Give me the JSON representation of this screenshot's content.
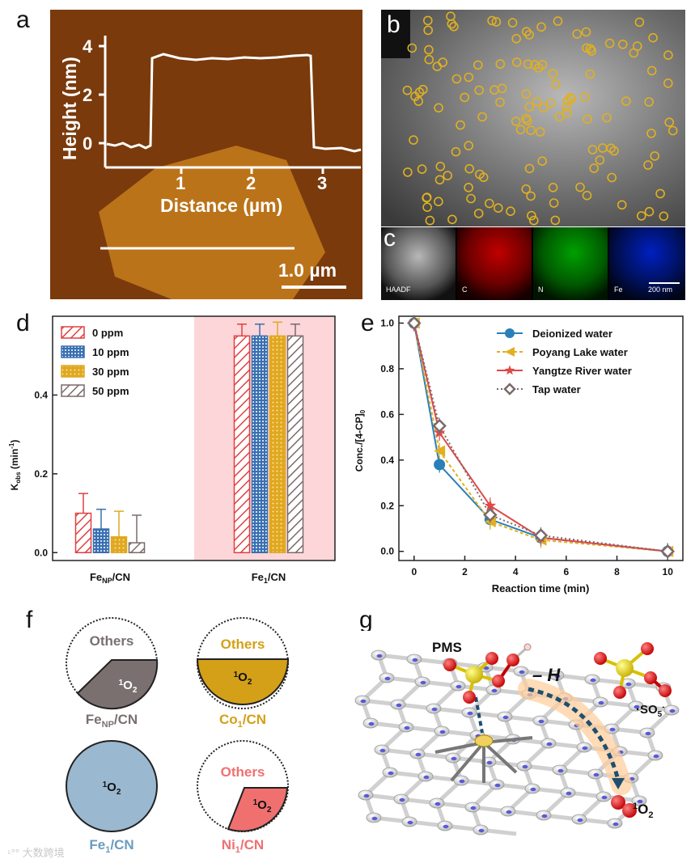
{
  "panels": {
    "a": {
      "label": "a",
      "y_axis_label": "Height (nm)",
      "x_axis_label": "Distance (µm)",
      "y_ticks": [
        "0",
        "2",
        "4"
      ],
      "x_ticks": [
        "1",
        "2",
        "3"
      ],
      "scale_bar": "1.0 µm",
      "colors": {
        "bg": "#7a3a0c",
        "flake": "#c27a1c",
        "line": "#ffffff"
      }
    },
    "b": {
      "label": "b",
      "circle_color": "#e0b020"
    },
    "c": {
      "label": "c",
      "maps": [
        "HAADF",
        "C",
        "N",
        "Fe"
      ],
      "scale_bar": "200 nm",
      "colors": {
        "HAADF": "#9a9a9a",
        "C": "#c00000",
        "N": "#00a000",
        "Fe": "#0020c0"
      }
    },
    "f": {
      "label": "f",
      "pies": [
        {
          "others": "Others",
          "singlet": "1O2",
          "catalyst": "FeNP/CN",
          "color": "#7a7070"
        },
        {
          "others": "Others",
          "singlet": "1O2",
          "catalyst": "Co1/CN",
          "color": "#d4a018"
        },
        {
          "singlet": "1O2",
          "catalyst": "Fe1/CN",
          "color": "#9ab8d0"
        },
        {
          "others": "Others",
          "singlet": "1O2",
          "catalyst": "Ni1/CN",
          "color": "#f07070"
        }
      ]
    },
    "g": {
      "label": "g",
      "pms": "PMS",
      "minus_h": "– H",
      "so5": "·SO5-",
      "singlet": "1O2"
    }
  },
  "chart_data": [
    {
      "panel": "d",
      "type": "bar",
      "title": "",
      "xlabel": "",
      "ylabel": "Kobs (min-1)",
      "categories": [
        "FeNP/CN",
        "Fe1/CN"
      ],
      "ylim": [
        -0.02,
        0.6
      ],
      "yticks": [
        0.0,
        0.2,
        0.4
      ],
      "legend_position": "top-left",
      "series": [
        {
          "name": "0 ppm",
          "values": [
            0.1,
            0.55
          ],
          "errors": [
            0.05,
            0.03
          ],
          "color": "#e04040"
        },
        {
          "name": "10 ppm",
          "values": [
            0.06,
            0.55
          ],
          "errors": [
            0.05,
            0.03
          ],
          "color": "#3a6fb0"
        },
        {
          "name": "30 ppm",
          "values": [
            0.04,
            0.55
          ],
          "errors": [
            0.065,
            0.035
          ],
          "color": "#e0a820"
        },
        {
          "name": "50 ppm",
          "values": [
            0.025,
            0.55
          ],
          "errors": [
            0.07,
            0.03
          ],
          "color": "#7a6a6a"
        }
      ]
    },
    {
      "panel": "e",
      "type": "line",
      "title": "",
      "xlabel": "Reaction time (min)",
      "ylabel": "Conc./[4-CP]0",
      "xlim": [
        -0.6,
        10.6
      ],
      "ylim": [
        -0.04,
        1.03
      ],
      "xticks": [
        0,
        2,
        4,
        6,
        8,
        10
      ],
      "yticks": [
        0.0,
        0.2,
        0.4,
        0.6,
        0.8,
        1.0
      ],
      "legend_position": "top-right",
      "x": [
        0,
        1,
        3,
        5,
        10
      ],
      "series": [
        {
          "name": "Deionized water",
          "values": [
            1.0,
            0.38,
            0.14,
            0.06,
            0.0
          ],
          "color": "#2a7fb8",
          "marker": "circle"
        },
        {
          "name": "Poyang Lake water",
          "values": [
            1.0,
            0.44,
            0.13,
            0.05,
            0.0
          ],
          "color": "#e0b020",
          "marker": "triangle-left"
        },
        {
          "name": "Yangtze River water",
          "values": [
            1.0,
            0.52,
            0.2,
            0.06,
            0.0
          ],
          "color": "#e04848",
          "marker": "star"
        },
        {
          "name": "Tap water",
          "values": [
            1.0,
            0.55,
            0.16,
            0.07,
            0.0
          ],
          "color": "#7a6a6a",
          "marker": "diamond"
        }
      ]
    }
  ],
  "watermark": "大数跨境"
}
